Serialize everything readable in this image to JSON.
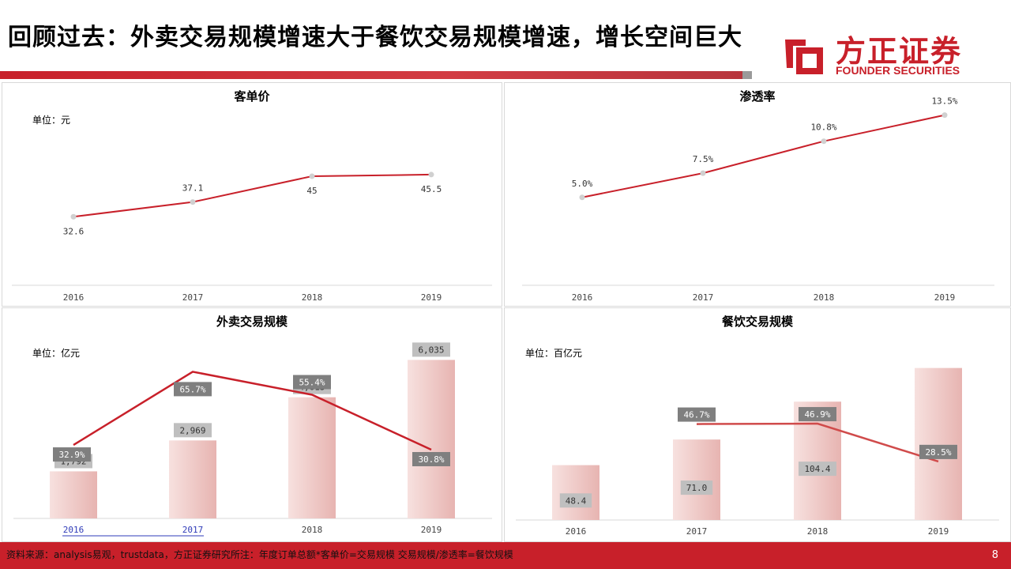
{
  "title": "回顾过去：外卖交易规模增速大于餐饮交易规模增速，增长空间巨大",
  "logo": {
    "cn": "方正证券",
    "en": "FOUNDER SECURITIES"
  },
  "footer": {
    "source": "资料来源：analysis易观，trustdata，方正证券研究所注：年度订单总额*客单价=交易规模 交易规模/渗透率=餐饮规模",
    "page": "8"
  },
  "colors": {
    "accent": "#c8202a",
    "bar": "#f0c8c6",
    "label_bg": "#7f7f7f",
    "label_bg_light": "#bfbfbf"
  },
  "chart_data": [
    {
      "type": "line",
      "title": "客单价",
      "unit": "单位：元",
      "categories": [
        "2016",
        "2017",
        "2018",
        "2019"
      ],
      "values": [
        32.6,
        37.1,
        45,
        45.5
      ],
      "labels": [
        "32.6",
        "37.1",
        "45",
        "45.5"
      ],
      "ylim": [
        0,
        60
      ]
    },
    {
      "type": "line",
      "title": "渗透率",
      "unit": "",
      "categories": [
        "2016",
        "2017",
        "2018",
        "2019"
      ],
      "values": [
        5.0,
        7.5,
        10.8,
        13.5
      ],
      "labels": [
        "5.0%",
        "7.5%",
        "10.8%",
        "13.5%"
      ],
      "ylim": [
        0,
        16
      ]
    },
    {
      "type": "bar",
      "title": "外卖交易规模",
      "unit": "单位：亿元",
      "categories": [
        "2016",
        "2017",
        "2018",
        "2019"
      ],
      "values": [
        1792,
        2969,
        4613,
        6035
      ],
      "value_labels": [
        "1,792",
        "2,969",
        "4,613",
        "6,035"
      ],
      "ylim": [
        0,
        6800
      ],
      "line": {
        "values": [
          32.9,
          65.7,
          55.4,
          30.8
        ],
        "labels": [
          "32.9%",
          "65.7%",
          "55.4%",
          "30.8%"
        ],
        "ylim": [
          0,
          80
        ]
      }
    },
    {
      "type": "bar",
      "title": "餐饮交易规模",
      "unit": "单位：百亿元",
      "categories": [
        "2016",
        "2017",
        "2018",
        "2019"
      ],
      "values": [
        48.4,
        71.0,
        104.4,
        134.1
      ],
      "value_labels": [
        "48.4",
        "71.0",
        "104.4",
        "134.1"
      ],
      "ylim": [
        0,
        145
      ],
      "line": {
        "values": [
          46.7,
          46.9,
          28.5
        ],
        "categories": [
          "2017",
          "2018",
          "2019"
        ],
        "labels": [
          "46.7%",
          "46.9%",
          "28.5%"
        ],
        "ylim": [
          0,
          80
        ]
      }
    }
  ]
}
